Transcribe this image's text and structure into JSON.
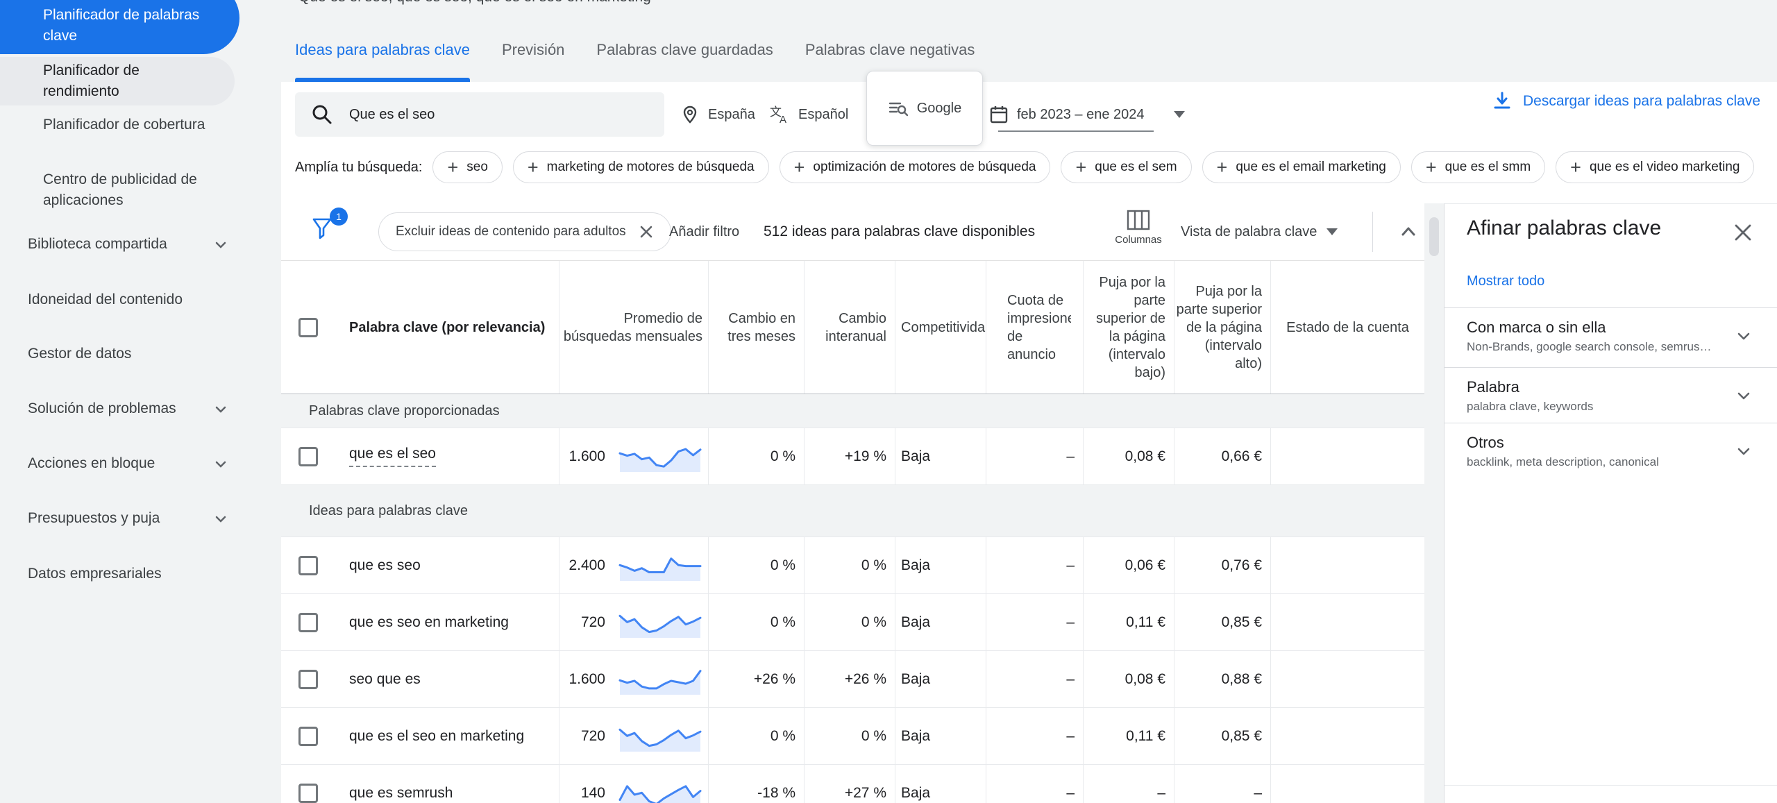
{
  "page": {
    "clipped_keywords": "Que es el seo, que es seo, que es el seo en marketing"
  },
  "colors": {
    "accent_blue": "#1a73e8",
    "text_dark": "#202124",
    "text_gray": "#5f6368",
    "border": "#dadce0",
    "band_bg": "#f1f3f4",
    "spark_line": "#4285f4"
  },
  "icons": {
    "search": "magnifier",
    "location": "map-pin",
    "language": "translate",
    "network": "list-search",
    "date": "calendar",
    "download": "download-arrow",
    "filter": "funnel",
    "columns": "table-columns",
    "collapse": "chevron-up",
    "expand_section": "chevron-down",
    "close": "x",
    "caret": "triangle-down",
    "add": "plus"
  },
  "sidebar": {
    "items": [
      {
        "label": "Planificador de palabras clave",
        "state": "selected"
      },
      {
        "label": "Planificador de rendimiento",
        "state": "hover"
      },
      {
        "label": "Planificador de cobertura"
      },
      {
        "label": "Centro de publicidad de aplicaciones"
      },
      {
        "label": "Biblioteca compartida",
        "chevron": true
      },
      {
        "label": "Idoneidad del contenido"
      },
      {
        "label": "Gestor de datos"
      },
      {
        "label": "Solución de problemas",
        "chevron": true
      },
      {
        "label": "Acciones en bloque",
        "chevron": true
      },
      {
        "label": "Presupuestos y puja",
        "chevron": true
      },
      {
        "label": "Datos empresariales"
      }
    ]
  },
  "tabs": [
    {
      "label": "Ideas para palabras clave",
      "active": true
    },
    {
      "label": "Previsión",
      "active": false
    },
    {
      "label": "Palabras clave guardadas",
      "active": false
    },
    {
      "label": "Palabras clave negativas",
      "active": false
    }
  ],
  "toolbar": {
    "search_value": "Que es el seo",
    "location": "España",
    "language": "Español",
    "network": "Google",
    "date_range": "feb 2023 – ene 2024",
    "download_label": "Descargar ideas para palabras clave"
  },
  "expand": {
    "label": "Amplía tu búsqueda:",
    "chips": [
      "seo",
      "marketing de motores de búsqueda",
      "optimización de motores de búsqueda",
      "que es el sem",
      "que es el email marketing",
      "que es el smm",
      "que es el video marketing"
    ]
  },
  "filter_bar": {
    "badge": "1",
    "exclude_chip": "Excluir ideas de contenido para adultos",
    "add_filter": "Añadir filtro",
    "count_text": "512 ideas para palabras clave disponibles",
    "columns_label": "Columnas",
    "view_label": "Vista de palabra clave"
  },
  "table": {
    "headers": [
      "Palabra clave (por relevancia)",
      "Promedio de búsquedas mensuales",
      "Cambio en tres meses",
      "Cambio interanual",
      "Competitividad",
      "Cuota de impresiones de anuncio",
      "Puja por la parte superior de la página (intervalo bajo)",
      "Puja por la parte superior de la página (intervalo alto)",
      "Estado de la cuenta"
    ],
    "sections": [
      {
        "label": "Palabras clave proporcionadas",
        "rows": [
          {
            "keyword": "que es el seo",
            "underlined": true,
            "avg": "1.600",
            "trend": [
              70,
              60,
              68,
              45,
              52,
              20,
              14,
              40,
              78,
              88,
              62,
              86
            ],
            "three_month": "0 %",
            "yoy": "+19 %",
            "competition": "Baja",
            "ad_share": "–",
            "bid_low": "0,08 €",
            "bid_high": "0,66 €",
            "account": ""
          }
        ]
      },
      {
        "label": "Ideas para palabras clave",
        "rows": [
          {
            "keyword": "que es seo",
            "avg": "2.400",
            "trend": [
              58,
              48,
              34,
              45,
              28,
              28,
              28,
              86,
              58,
              54,
              54,
              54
            ],
            "three_month": "0 %",
            "yoy": "0 %",
            "competition": "Baja",
            "ad_share": "–",
            "bid_low": "0,06 €",
            "bid_high": "0,76 €",
            "account": ""
          },
          {
            "keyword": "que es seo en marketing",
            "avg": "720",
            "trend": [
              84,
              58,
              70,
              36,
              16,
              22,
              40,
              62,
              80,
              48,
              60,
              76
            ],
            "three_month": "0 %",
            "yoy": "0 %",
            "competition": "Baja",
            "ad_share": "–",
            "bid_low": "0,11 €",
            "bid_high": "0,85 €",
            "account": ""
          },
          {
            "keyword": "seo que es",
            "avg": "1.600",
            "trend": [
              52,
              42,
              50,
              26,
              18,
              18,
              36,
              50,
              44,
              38,
              50,
              92
            ],
            "three_month": "+26 %",
            "yoy": "+26 %",
            "competition": "Baja",
            "ad_share": "–",
            "bid_low": "0,08 €",
            "bid_high": "0,88 €",
            "account": ""
          },
          {
            "keyword": "que es el seo en marketing",
            "avg": "720",
            "trend": [
              84,
              58,
              70,
              36,
              16,
              22,
              40,
              62,
              80,
              48,
              60,
              76
            ],
            "three_month": "0 %",
            "yoy": "0 %",
            "competition": "Baja",
            "ad_share": "–",
            "bid_low": "0,11 €",
            "bid_high": "0,85 €",
            "account": ""
          },
          {
            "keyword": "que es semrush",
            "avg": "140",
            "trend": [
              28,
              86,
              50,
              58,
              22,
              10,
              34,
              52,
              70,
              86,
              40,
              66
            ],
            "three_month": "-18 %",
            "yoy": "+27 %",
            "competition": "Baja",
            "ad_share": "–",
            "bid_low": "–",
            "bid_high": "–",
            "account": ""
          }
        ]
      }
    ]
  },
  "refine_panel": {
    "title": "Afinar palabras clave",
    "show_all": "Mostrar todo",
    "sections": [
      {
        "title": "Con marca o sin ella",
        "subtitle": "Non-Brands, google search console, semrus…"
      },
      {
        "title": "Palabra",
        "subtitle": "palabra clave, keywords"
      },
      {
        "title": "Otros",
        "subtitle": "backlink, meta description, canonical"
      }
    ]
  }
}
